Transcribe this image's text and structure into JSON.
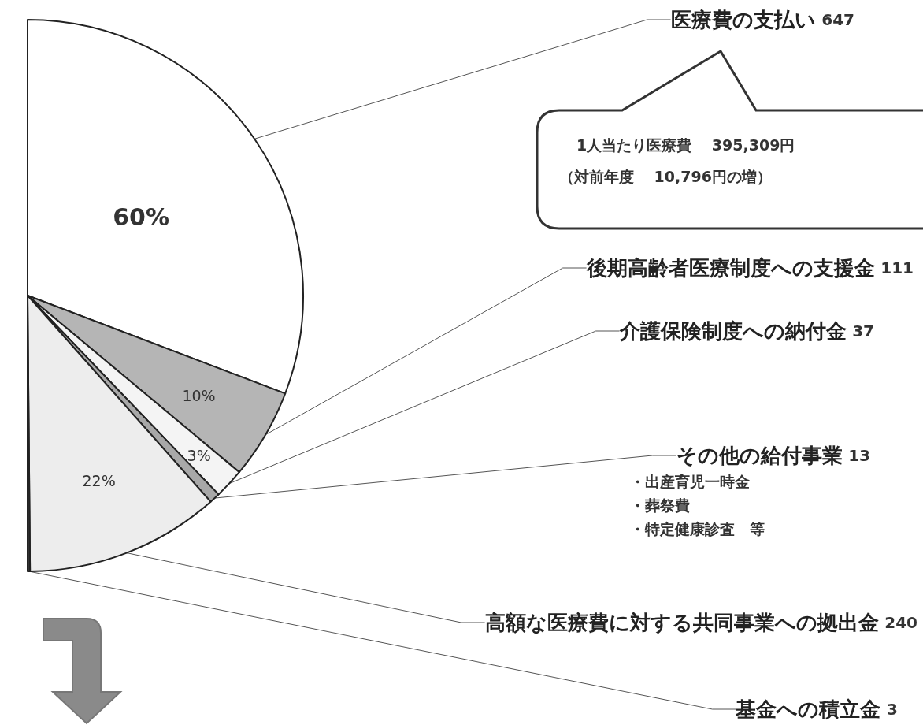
{
  "chart_data": {
    "type": "pie",
    "categories": [
      "医療費の支払い",
      "後期高齢者医療制度への支援金",
      "介護保険制度への納付金",
      "その他の給付事業",
      "高額な医療費に対する共同事業への拠出金",
      "基金への積立金"
    ],
    "values": [
      647,
      111,
      37,
      13,
      240,
      3
    ],
    "colors": [
      "#ffffff",
      "#b5b5b5",
      "#f4f4f4",
      "#a8a8a8",
      "#ededed",
      "#333333"
    ],
    "value_labels": [
      "647",
      "111",
      "37",
      "13",
      "240",
      "3"
    ],
    "annotations": [
      "1人当たり医療費　 395,309円",
      "（対前年度　 10,796円の増）",
      "・出産育児一時金",
      "・葬祭費",
      "・特定健康診査　等",
      {
        "text": "60%",
        "x": "医療費の支払い"
      },
      {
        "text": "10%",
        "x": "後期高齢者医療制度への支援金"
      },
      {
        "text": "3%",
        "x": "介護保険制度への納付金"
      },
      {
        "text": "22%",
        "x": "高額な医療費に対する共同事業への拠出金"
      }
    ]
  }
}
